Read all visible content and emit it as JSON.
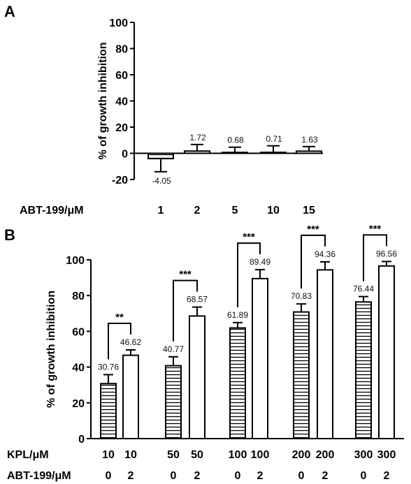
{
  "chart_data": [
    {
      "panel": "A",
      "type": "bar",
      "ylabel": "% of growth inhibition",
      "ylim": [
        -20,
        100
      ],
      "yticks": [
        -20,
        0,
        20,
        40,
        60,
        80,
        100
      ],
      "ytick_labels": [
        "-20",
        "0",
        "20",
        "40",
        "60",
        "80",
        "100"
      ],
      "row_label": "ABT-199/μM",
      "categories": [
        "1",
        "2",
        "5",
        "10",
        "15"
      ],
      "values": [
        -4.05,
        1.72,
        0.68,
        0.71,
        1.63
      ],
      "errors": [
        10,
        5,
        4,
        5,
        3.5
      ],
      "value_labels": [
        "-4.05",
        "1.72",
        "0.68",
        "0.71",
        "1.63"
      ],
      "patterns": [
        "striped",
        "striped",
        "striped",
        "striped",
        "striped"
      ]
    },
    {
      "panel": "B",
      "type": "bar",
      "ylabel": "% of growth inhibition",
      "ylim": [
        0,
        100
      ],
      "yticks": [
        0,
        20,
        40,
        60,
        80,
        100
      ],
      "ytick_labels": [
        "0",
        "20",
        "40",
        "60",
        "80",
        "100"
      ],
      "row_labels": [
        "KPL/μM",
        "ABT-199/μM"
      ],
      "kpl": [
        "10",
        "10",
        "50",
        "50",
        "100",
        "100",
        "200",
        "200",
        "300",
        "300"
      ],
      "abt": [
        "0",
        "2",
        "0",
        "2",
        "0",
        "2",
        "0",
        "2",
        "0",
        "2"
      ],
      "values": [
        30.76,
        46.62,
        40.77,
        68.57,
        61.89,
        89.49,
        70.83,
        94.36,
        76.44,
        96.56
      ],
      "errors": [
        5,
        3,
        5,
        5,
        3,
        5,
        4.5,
        4.5,
        3,
        2.5
      ],
      "value_labels": [
        "30.76",
        "46.62",
        "40.77",
        "68.57",
        "61.89",
        "89.49",
        "70.83",
        "94.36",
        "76.44",
        "96.56"
      ],
      "patterns": [
        "striped",
        "open",
        "striped",
        "open",
        "striped",
        "open",
        "striped",
        "open",
        "striped",
        "open"
      ],
      "significance": [
        {
          "pair": [
            0,
            1
          ],
          "label": "**"
        },
        {
          "pair": [
            2,
            3
          ],
          "label": "***"
        },
        {
          "pair": [
            4,
            5
          ],
          "label": "***"
        },
        {
          "pair": [
            6,
            7
          ],
          "label": "***"
        },
        {
          "pair": [
            8,
            9
          ],
          "label": "***"
        }
      ]
    }
  ]
}
